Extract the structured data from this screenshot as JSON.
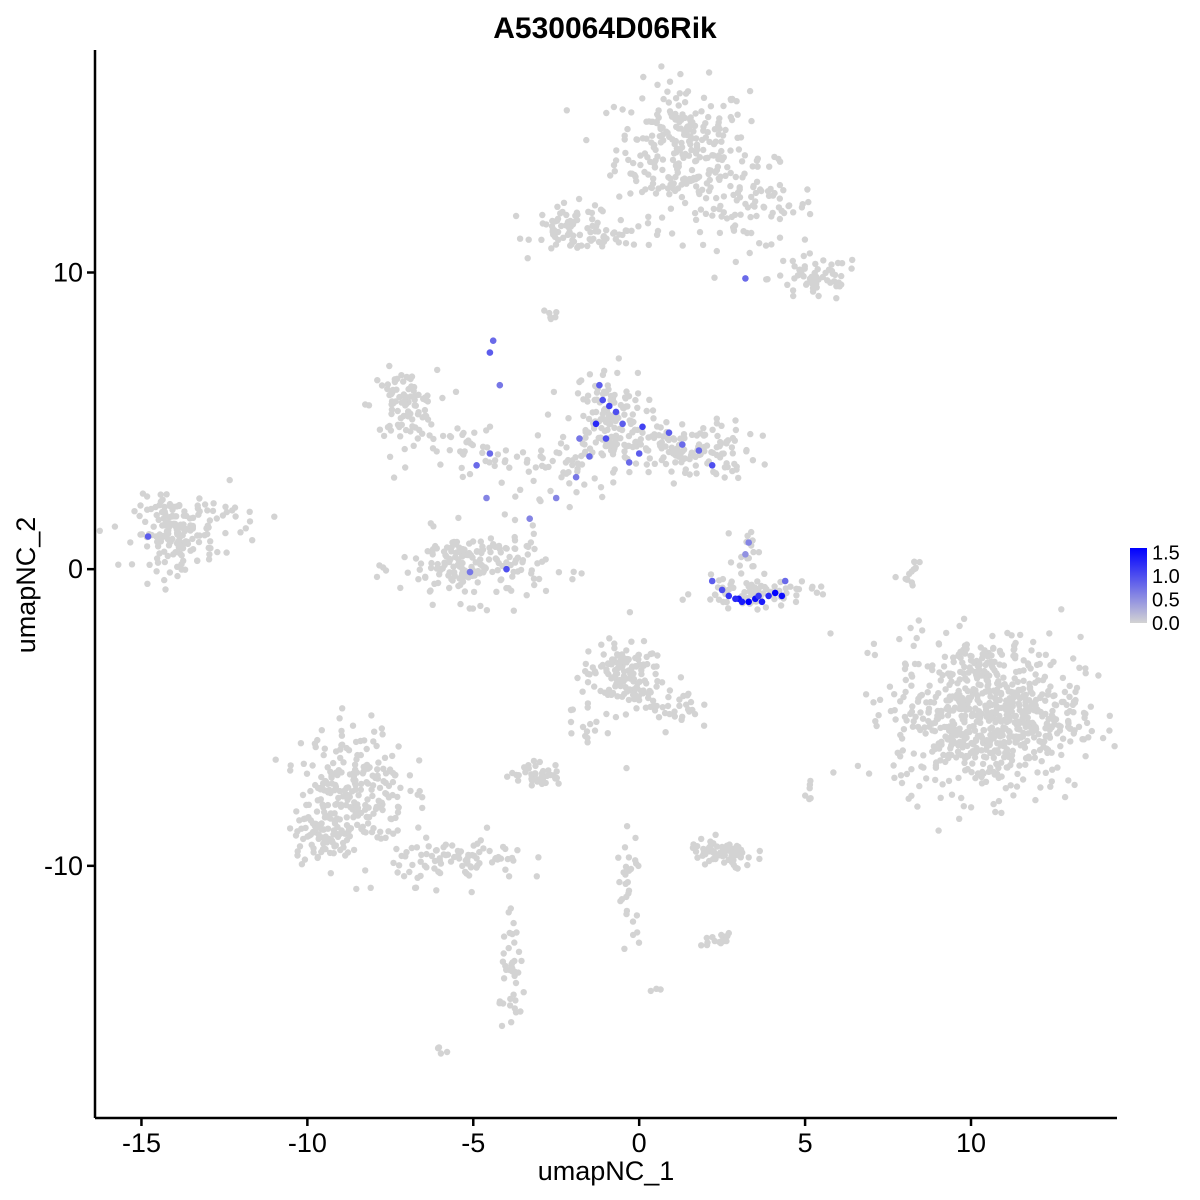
{
  "chart_data": {
    "type": "scatter",
    "title": "A530064D06Rik",
    "xlabel": "umapNC_1",
    "ylabel": "umapNC_2",
    "xlim": [
      -16.4,
      14.4
    ],
    "ylim": [
      -18.5,
      17.5
    ],
    "x_ticks": [
      -15,
      -10,
      -5,
      0,
      5,
      10
    ],
    "x_tick_labels": [
      "-15",
      "-10",
      "-5",
      "0",
      "5",
      "10"
    ],
    "y_ticks": [
      -10,
      0,
      10
    ],
    "y_tick_labels": [
      "-10",
      "0",
      "10"
    ],
    "grid": false,
    "legend": {
      "placement": "right",
      "ticks": [
        0.0,
        0.5,
        1.0,
        1.5
      ],
      "tick_labels": [
        "0.0",
        "0.5",
        "1.0",
        "1.5"
      ],
      "range": [
        0.0,
        1.6
      ]
    },
    "colors": {
      "low": "#d3d3d3",
      "high": "#0000ff"
    },
    "clusters": [
      {
        "cx": 1.3,
        "cy": 14.2,
        "sx": 1.0,
        "sy": 1.1,
        "n": 260,
        "expr": 0
      },
      {
        "cx": 3.3,
        "cy": 12.2,
        "sx": 1.0,
        "sy": 0.7,
        "n": 90,
        "expr": 0
      },
      {
        "cx": 5.3,
        "cy": 9.8,
        "sx": 0.7,
        "sy": 0.4,
        "n": 60,
        "expr": 0
      },
      {
        "cx": -2.0,
        "cy": 11.5,
        "sx": 0.6,
        "sy": 0.4,
        "n": 70,
        "expr": 0
      },
      {
        "cx": -0.5,
        "cy": 11.2,
        "sx": 0.8,
        "sy": 0.15,
        "n": 25,
        "expr": 0
      },
      {
        "cx": -7.1,
        "cy": 5.5,
        "sx": 0.5,
        "sy": 0.6,
        "n": 90,
        "expr": 0
      },
      {
        "cx": -5.0,
        "cy": 4.0,
        "sx": 1.2,
        "sy": 0.6,
        "n": 45,
        "expr": 0
      },
      {
        "cx": -1.0,
        "cy": 5.0,
        "sx": 0.6,
        "sy": 0.9,
        "n": 140,
        "expr": 0
      },
      {
        "cx": 1.5,
        "cy": 4.0,
        "sx": 1.0,
        "sy": 0.5,
        "n": 140,
        "expr": 0
      },
      {
        "cx": -2.5,
        "cy": 3.4,
        "sx": 0.8,
        "sy": 0.5,
        "n": 40,
        "expr": 0
      },
      {
        "cx": -14.0,
        "cy": 1.2,
        "sx": 0.6,
        "sy": 0.6,
        "n": 160,
        "expr": 0
      },
      {
        "cx": -12.2,
        "cy": 1.8,
        "sx": 0.6,
        "sy": 0.5,
        "n": 20,
        "expr": 0
      },
      {
        "cx": -5.0,
        "cy": 0.1,
        "sx": 1.1,
        "sy": 0.6,
        "n": 190,
        "expr": 0
      },
      {
        "cx": 3.5,
        "cy": -0.8,
        "sx": 0.9,
        "sy": 0.25,
        "n": 80,
        "expr": 0
      },
      {
        "cx": 3.3,
        "cy": 0.7,
        "sx": 0.2,
        "sy": 0.4,
        "n": 15,
        "expr": 0
      },
      {
        "cx": 10.5,
        "cy": -4.9,
        "sx": 1.4,
        "sy": 1.3,
        "n": 750,
        "expr": 0
      },
      {
        "cx": 8.2,
        "cy": -0.2,
        "sx": 0.1,
        "sy": 0.6,
        "n": 15,
        "expr": 0
      },
      {
        "cx": -0.5,
        "cy": -3.6,
        "sx": 0.6,
        "sy": 0.6,
        "n": 140,
        "expr": 0
      },
      {
        "cx": 1.0,
        "cy": -4.6,
        "sx": 0.4,
        "sy": 0.4,
        "n": 30,
        "expr": 0
      },
      {
        "cx": -1.6,
        "cy": -5.3,
        "sx": 0.3,
        "sy": 0.5,
        "n": 15,
        "expr": 0
      },
      {
        "cx": -3.1,
        "cy": -6.9,
        "sx": 0.4,
        "sy": 0.2,
        "n": 40,
        "expr": 0
      },
      {
        "cx": -8.6,
        "cy": -7.4,
        "sx": 0.8,
        "sy": 1.1,
        "n": 240,
        "expr": 0
      },
      {
        "cx": -9.6,
        "cy": -9.0,
        "sx": 0.5,
        "sy": 0.4,
        "n": 60,
        "expr": 0
      },
      {
        "cx": -5.4,
        "cy": -9.8,
        "sx": 1.0,
        "sy": 0.4,
        "n": 90,
        "expr": 0
      },
      {
        "cx": -3.8,
        "cy": -13.8,
        "sx": 0.2,
        "sy": 0.9,
        "n": 40,
        "expr": 0
      },
      {
        "cx": -0.3,
        "cy": -11.0,
        "sx": 0.2,
        "sy": 1.3,
        "n": 30,
        "expr": 0
      },
      {
        "cx": 2.5,
        "cy": -9.6,
        "sx": 0.5,
        "sy": 0.25,
        "n": 70,
        "expr": 0
      },
      {
        "cx": 2.3,
        "cy": -12.5,
        "sx": 0.3,
        "sy": 0.12,
        "n": 15,
        "expr": 0
      },
      {
        "cx": 5.1,
        "cy": -7.4,
        "sx": 0.1,
        "sy": 0.2,
        "n": 6,
        "expr": 0
      },
      {
        "cx": -2.7,
        "cy": 8.5,
        "sx": 0.15,
        "sy": 0.1,
        "n": 6,
        "expr": 0
      },
      {
        "cx": -6.0,
        "cy": -16.2,
        "sx": 0.12,
        "sy": 0.06,
        "n": 4,
        "expr": 0
      },
      {
        "cx": 0.6,
        "cy": -14.2,
        "sx": 0.1,
        "sy": 0.05,
        "n": 3,
        "expr": 0
      }
    ],
    "highlighted_points": [
      {
        "x": 3.0,
        "y": -1.0,
        "v": 1.5
      },
      {
        "x": 3.3,
        "y": -1.1,
        "v": 1.6
      },
      {
        "x": 3.5,
        "y": -1.0,
        "v": 1.5
      },
      {
        "x": 3.7,
        "y": -1.1,
        "v": 1.4
      },
      {
        "x": 4.1,
        "y": -0.8,
        "v": 1.6
      },
      {
        "x": 4.3,
        "y": -0.9,
        "v": 1.5
      },
      {
        "x": 2.7,
        "y": -0.9,
        "v": 1.2
      },
      {
        "x": 3.9,
        "y": -0.9,
        "v": 1.3
      },
      {
        "x": 3.1,
        "y": -1.1,
        "v": 1.4
      },
      {
        "x": 2.5,
        "y": -0.7,
        "v": 1.0
      },
      {
        "x": 2.2,
        "y": -0.4,
        "v": 0.9
      },
      {
        "x": 4.4,
        "y": -0.4,
        "v": 0.8
      },
      {
        "x": 3.6,
        "y": -0.9,
        "v": 1.2
      },
      {
        "x": 2.9,
        "y": -1.0,
        "v": 1.3
      },
      {
        "x": 3.3,
        "y": 0.9,
        "v": 0.6
      },
      {
        "x": 3.2,
        "y": 0.5,
        "v": 0.5
      },
      {
        "x": -1.2,
        "y": 6.2,
        "v": 0.9
      },
      {
        "x": -1.1,
        "y": 5.7,
        "v": 1.0
      },
      {
        "x": -0.9,
        "y": 5.5,
        "v": 1.1
      },
      {
        "x": -1.3,
        "y": 4.9,
        "v": 1.3
      },
      {
        "x": -0.7,
        "y": 5.3,
        "v": 1.0
      },
      {
        "x": -0.5,
        "y": 4.9,
        "v": 0.9
      },
      {
        "x": -1.0,
        "y": 4.4,
        "v": 1.0
      },
      {
        "x": 0.1,
        "y": 4.8,
        "v": 1.1
      },
      {
        "x": 0.9,
        "y": 4.6,
        "v": 0.9
      },
      {
        "x": 1.3,
        "y": 4.2,
        "v": 0.8
      },
      {
        "x": 1.8,
        "y": 4.0,
        "v": 0.8
      },
      {
        "x": 2.2,
        "y": 3.5,
        "v": 1.0
      },
      {
        "x": 0.0,
        "y": 3.9,
        "v": 0.9
      },
      {
        "x": -0.3,
        "y": 3.6,
        "v": 0.8
      },
      {
        "x": -1.8,
        "y": 4.4,
        "v": 0.7
      },
      {
        "x": -1.5,
        "y": 3.8,
        "v": 0.8
      },
      {
        "x": -1.9,
        "y": 3.1,
        "v": 0.7
      },
      {
        "x": -4.5,
        "y": 7.3,
        "v": 0.9
      },
      {
        "x": -4.4,
        "y": 7.7,
        "v": 0.8
      },
      {
        "x": -4.2,
        "y": 6.2,
        "v": 0.7
      },
      {
        "x": -4.9,
        "y": 3.5,
        "v": 0.8
      },
      {
        "x": -4.5,
        "y": 3.9,
        "v": 0.8
      },
      {
        "x": -4.6,
        "y": 2.4,
        "v": 0.6
      },
      {
        "x": -3.3,
        "y": 1.7,
        "v": 0.6
      },
      {
        "x": -2.5,
        "y": 2.4,
        "v": 0.6
      },
      {
        "x": -4.0,
        "y": 0.0,
        "v": 1.0
      },
      {
        "x": -5.1,
        "y": -0.1,
        "v": 0.7
      },
      {
        "x": -14.8,
        "y": 1.1,
        "v": 0.9
      },
      {
        "x": 3.2,
        "y": 9.8,
        "v": 0.8
      }
    ]
  }
}
